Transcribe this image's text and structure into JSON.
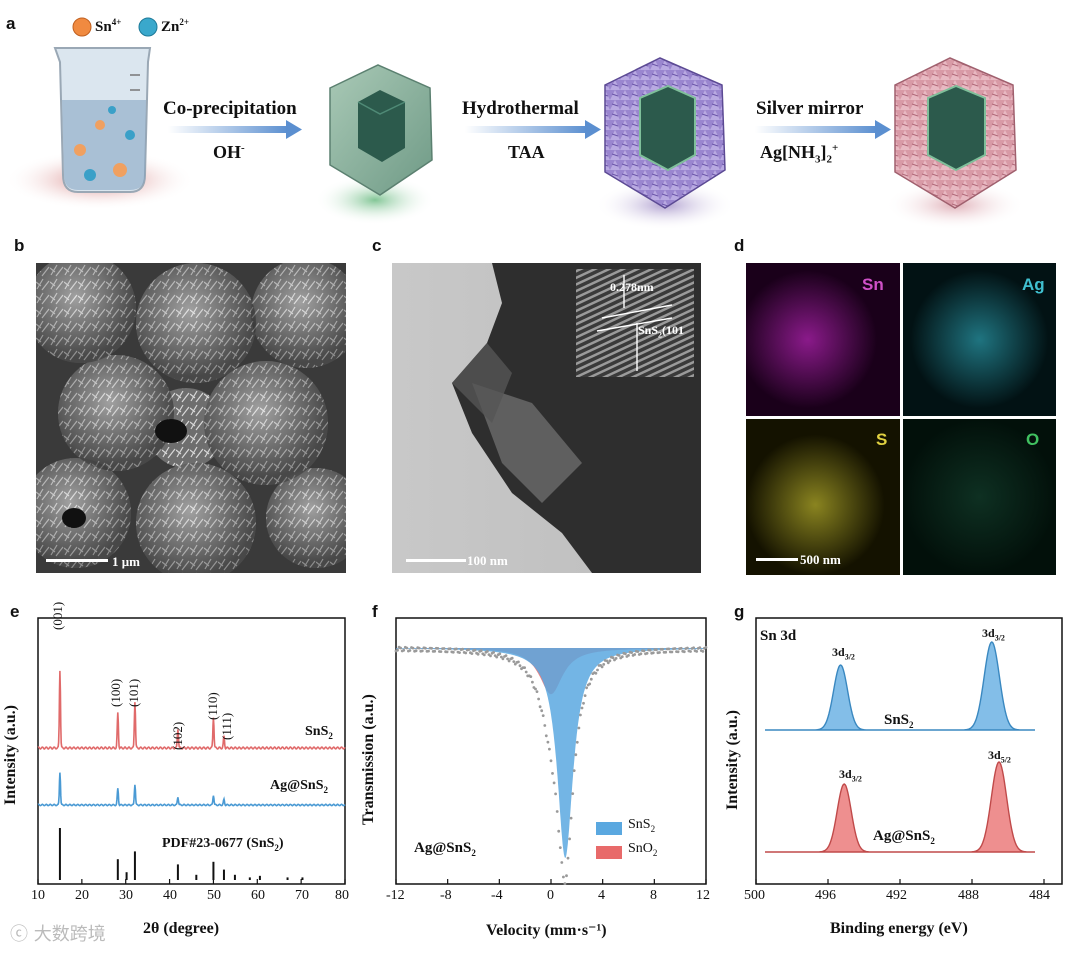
{
  "panels": {
    "a": "a",
    "b": "b",
    "c": "c",
    "d": "d",
    "e": "e",
    "f": "f",
    "g": "g"
  },
  "schematic": {
    "ion1": "Sn",
    "ion1_sup": "4+",
    "ion2": "Zn",
    "ion2_sup": "2+",
    "step1_top": "Co-precipitation",
    "step1_bottom": "OH",
    "step1_bottom_sup": "-",
    "step2_top": "Hydrothermal",
    "step2_bottom": "TAA",
    "step3_top": "Silver mirror",
    "step3_bottom": "Ag[NH",
    "step3_sub": "3",
    "step3_close": "]",
    "step3_sub2": "2",
    "step3_sup": "+",
    "colors": {
      "arrow": "#8fb4dd",
      "cube": "#7fbf9a",
      "purple": "#8a6fc4",
      "pink": "#d98a9c"
    }
  },
  "sem": {
    "scale": "1 μm"
  },
  "tem": {
    "scale": "100 nm",
    "inset_d": "0.278nm",
    "inset_plane": "SnS",
    "inset_plane_sub": "2",
    "inset_plane_hkl": "(101"
  },
  "eds": {
    "maps": [
      "Sn",
      "Ag",
      "S",
      "O"
    ],
    "scale": "500 nm",
    "colors": [
      "#d050c8",
      "#40c0d0",
      "#e0d040",
      "#40c060"
    ]
  },
  "xrd": {
    "ylabel": "Intensity (a.u.)",
    "xlabel": "2θ (degree)",
    "xticks": [
      "10",
      "20",
      "30",
      "40",
      "50",
      "60",
      "70",
      "80"
    ],
    "peak_labels": [
      "(001)",
      "(100)",
      "(101)",
      "(102)",
      "(110)",
      "(111)"
    ],
    "series": [
      "SnS",
      "Ag@SnS"
    ],
    "series_sub": "2",
    "ref_label": "PDF#23-0677 (SnS",
    "ref_close": ")"
  },
  "chart_data": [
    {
      "type": "line",
      "xlabel": "2θ (degree)",
      "ylabel": "Intensity (a.u.)",
      "xlim": [
        10,
        80
      ],
      "series": [
        {
          "name": "SnS2",
          "peaks_x": [
            15.0,
            28.2,
            32.1,
            41.9,
            50.0,
            52.4
          ],
          "peaks_h": [
            1.0,
            0.45,
            0.6,
            0.25,
            0.4,
            0.15
          ]
        },
        {
          "name": "Ag@SnS2",
          "peaks_x": [
            15.0,
            28.2,
            32.1,
            41.9,
            50.0,
            52.4
          ],
          "peaks_h": [
            0.6,
            0.3,
            0.38,
            0.15,
            0.18,
            0.1
          ]
        }
      ],
      "reference": {
        "name": "PDF#23-0677 (SnS2)",
        "x": [
          15.0,
          28.2,
          30.2,
          32.1,
          41.9,
          46.1,
          50.0,
          52.4,
          54.9,
          58.3,
          60.6,
          66.9,
          70.3
        ],
        "h": [
          1.0,
          0.4,
          0.15,
          0.55,
          0.3,
          0.1,
          0.35,
          0.2,
          0.1,
          0.05,
          0.08,
          0.05,
          0.05
        ]
      }
    },
    {
      "type": "line",
      "xlabel": "Velocity (mm·s⁻¹)",
      "ylabel": "Transmission (a.u.)",
      "xlim": [
        -12,
        12
      ],
      "xticks": [
        "-12",
        "-8",
        "-4",
        "0",
        "4",
        "8",
        "12"
      ],
      "series": [
        {
          "name": "SnS2",
          "center": 1.1,
          "depth": 1.0,
          "width": 0.75
        },
        {
          "name": "SnO2",
          "center": 0.0,
          "depth": 0.22,
          "width": 1.1
        }
      ],
      "sample_label": "Ag@SnS"
    },
    {
      "type": "line",
      "title": "Sn 3d",
      "xlabel": "Binding energy (eV)",
      "ylabel": "Intensity (a.u.)",
      "xlim": [
        500,
        483
      ],
      "xticks": [
        "500",
        "496",
        "492",
        "488",
        "484"
      ],
      "series": [
        {
          "name": "SnS2",
          "peaks_x": [
            495.3,
            486.9
          ],
          "peak_labels": [
            "3d",
            "3d"
          ],
          "peak_subs": [
            "3/2",
            "3/2"
          ]
        },
        {
          "name": "Ag@SnS2",
          "peaks_x": [
            495.1,
            486.5
          ],
          "peak_labels": [
            "3d",
            "3d"
          ],
          "peak_subs": [
            "3/2",
            "5/2"
          ]
        }
      ]
    }
  ],
  "watermark": "大数跨境"
}
